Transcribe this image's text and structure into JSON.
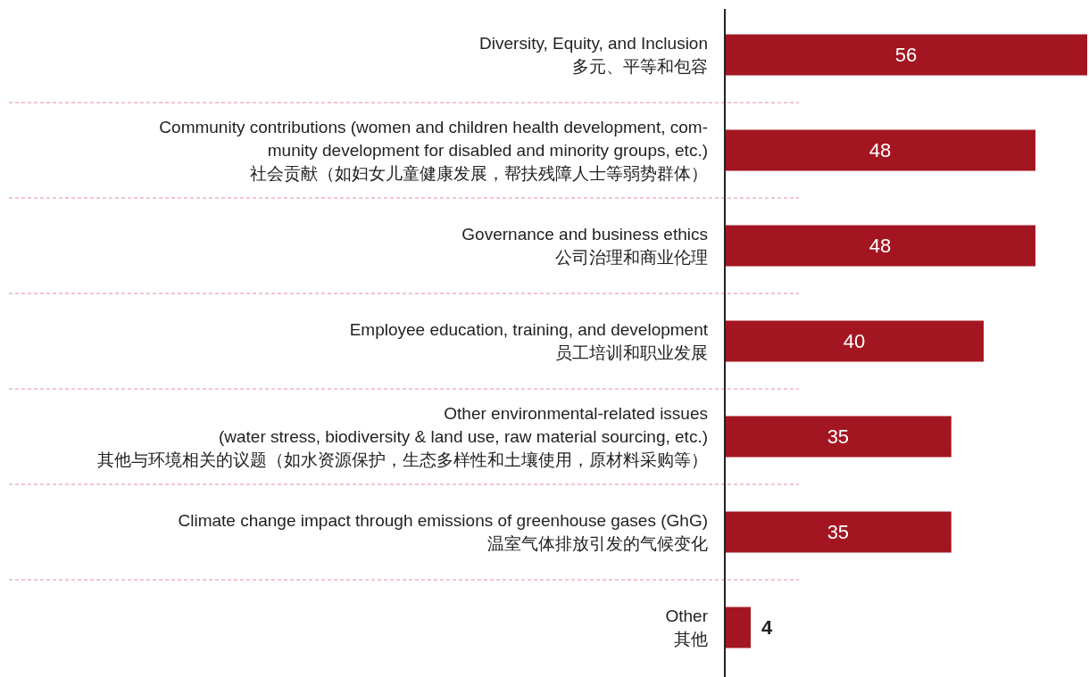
{
  "chart_data": {
    "type": "bar",
    "orientation": "horizontal",
    "data_labels": true,
    "grid": true,
    "color": "#a31621",
    "categories": [
      "Diversity, Equity, and Inclusion\n多元、平等和包容",
      "Community contributions (women and children health development, com-\nmunity development for disabled and minority groups, etc.)\n社会贡献（如妇女儿童健康发展，帮扶残障人士等弱势群体）",
      "Governance and business ethics\n公司治理和商业伦理",
      "Employee education, training, and development\n员工培训和职业发展",
      "Other environmental-related issues\n(water stress, biodiversity & land use, raw material sourcing, etc.)\n其他与环境相关的议题（如水资源保护，生态多样性和土壤使用，原材料采购等）",
      "Climate change impact through emissions of greenhouse gases (GhG)\n温室气体排放引发的气候变化",
      "Other\n其他"
    ],
    "values": [
      56,
      48,
      48,
      40,
      35,
      35,
      4
    ]
  }
}
